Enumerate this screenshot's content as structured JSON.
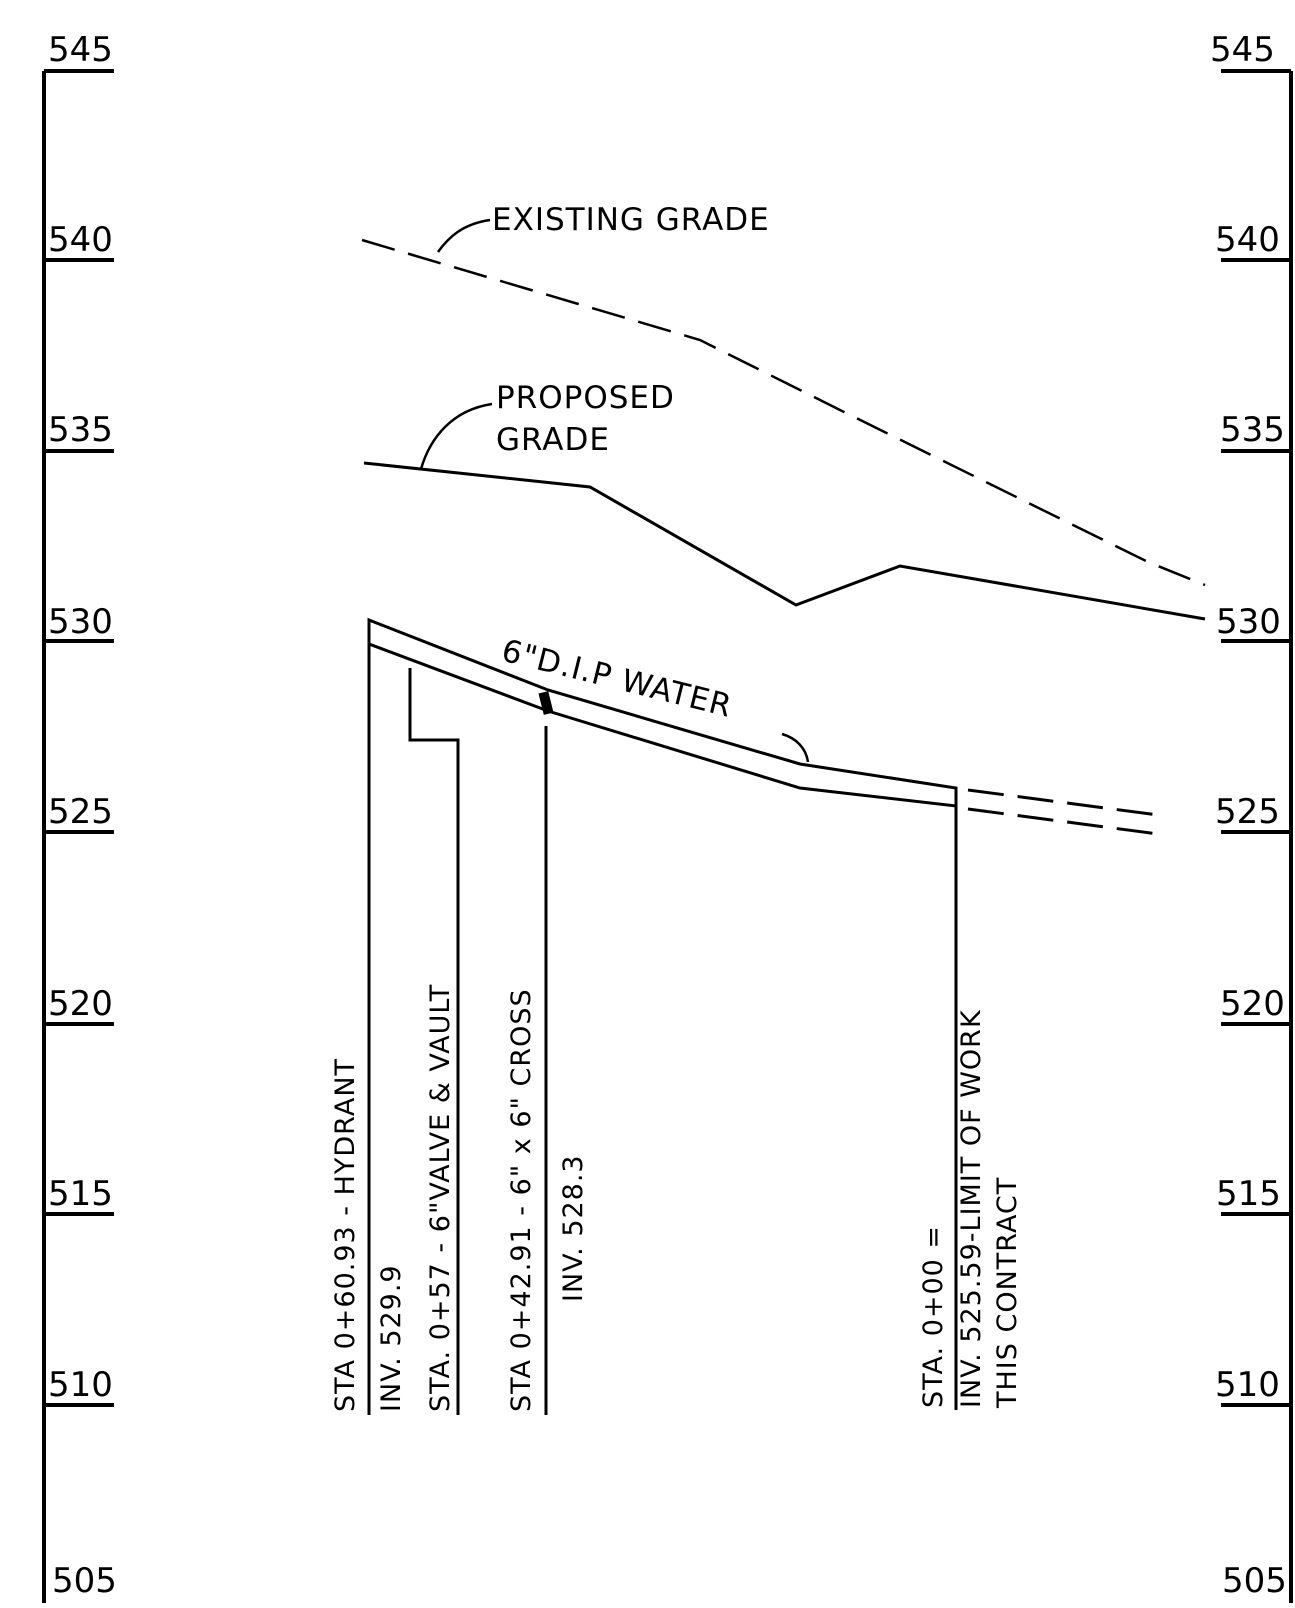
{
  "scale": {
    "elevations": [
      "545",
      "540",
      "535",
      "530",
      "525",
      "520",
      "515",
      "510",
      "505"
    ]
  },
  "profile": {
    "existing_grade_label": "EXISTING GRADE",
    "proposed_grade_label": [
      "PROPOSED",
      "GRADE"
    ],
    "pipe_label": "6\"D.I.P WATER"
  },
  "callouts": [
    {
      "lines": [
        "STA 0+60.93 - HYDRANT",
        "INV. 529.9"
      ]
    },
    {
      "lines": [
        "STA. 0+57 - 6\"VALVE & VAULT"
      ]
    },
    {
      "lines": [
        "STA 0+42.91 - 6\" x 6\" CROSS",
        "INV. 528.3"
      ]
    },
    {
      "lines": [
        "STA. 0+00 =",
        "INV. 525.59-LIMIT OF WORK",
        "THIS CONTRACT"
      ]
    }
  ],
  "colors": {
    "ink": "#000000",
    "paper": "#ffffff"
  }
}
